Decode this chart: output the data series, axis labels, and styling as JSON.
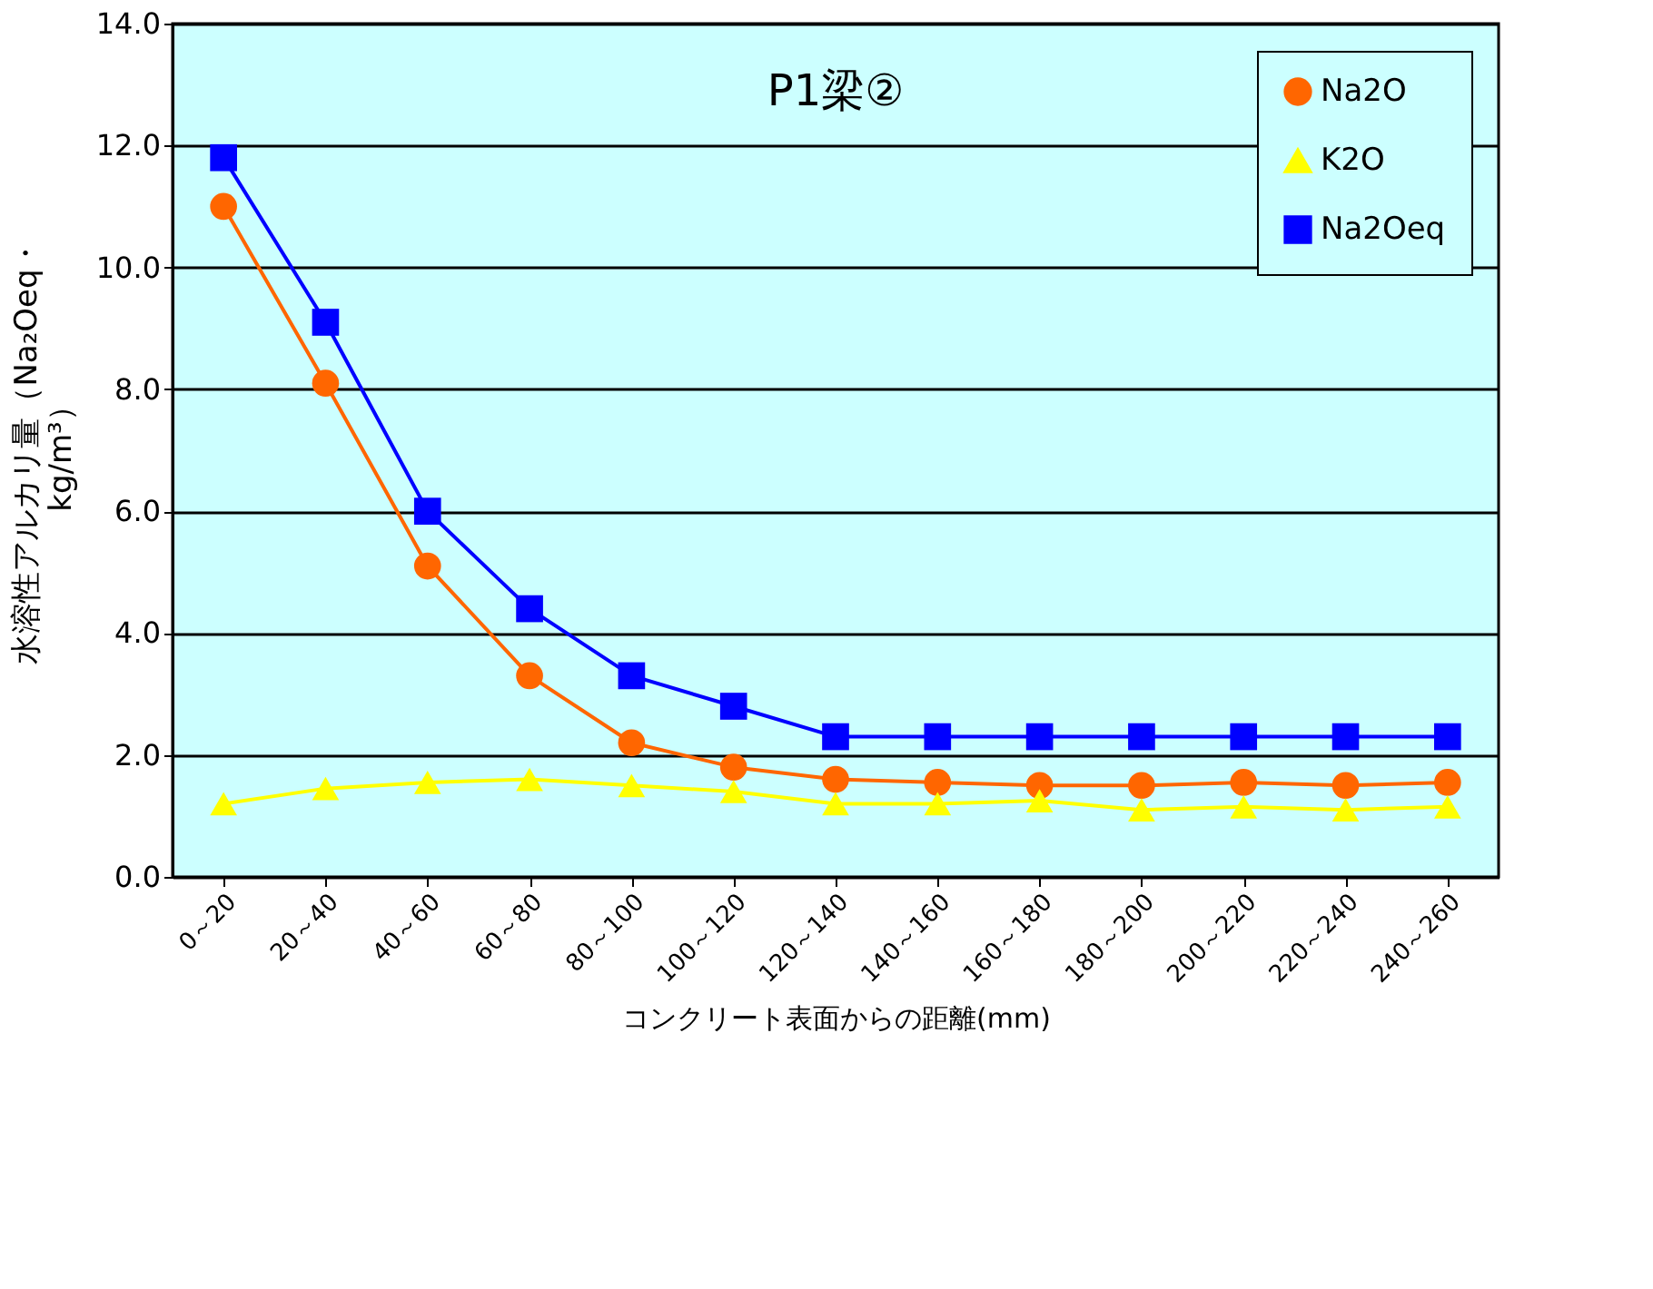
{
  "chart_data": {
    "type": "line",
    "title": "P1梁②",
    "xlabel": "コンクリート表面からの距離(mm)",
    "ylabel": "水溶性アルカリ量（Na₂Oeq・kg/m³）",
    "categories": [
      "0～20",
      "20～40",
      "40～60",
      "60～80",
      "80～100",
      "100～120",
      "120～140",
      "140～160",
      "160～180",
      "180～200",
      "200～220",
      "220～240",
      "240～260"
    ],
    "series": [
      {
        "name": "Na2O",
        "color": "#ff6600",
        "marker": "circle",
        "values": [
          11.0,
          8.1,
          5.1,
          3.3,
          2.2,
          1.8,
          1.6,
          1.55,
          1.5,
          1.5,
          1.55,
          1.5,
          1.55
        ]
      },
      {
        "name": "K2O",
        "color": "#ffff00",
        "marker": "triangle",
        "values": [
          1.2,
          1.45,
          1.55,
          1.6,
          1.5,
          1.4,
          1.2,
          1.2,
          1.25,
          1.1,
          1.15,
          1.1,
          1.15
        ]
      },
      {
        "name": "Na2Oeq",
        "color": "#0000ff",
        "marker": "square",
        "values": [
          11.8,
          9.1,
          6.0,
          4.4,
          3.3,
          2.8,
          2.3,
          2.3,
          2.3,
          2.3,
          2.3,
          2.3,
          2.3
        ]
      }
    ],
    "ylim": [
      0,
      14
    ],
    "yticks": [
      {
        "value": 0,
        "label": "0.0"
      },
      {
        "value": 2,
        "label": "2.0"
      },
      {
        "value": 4,
        "label": "4.0"
      },
      {
        "value": 6,
        "label": "6.0"
      },
      {
        "value": 8,
        "label": "8.0"
      },
      {
        "value": 10,
        "label": "10.0"
      },
      {
        "value": 12,
        "label": "12.0"
      },
      {
        "value": 14,
        "label": "14.0"
      }
    ],
    "grid": "y",
    "legend": "top right"
  }
}
